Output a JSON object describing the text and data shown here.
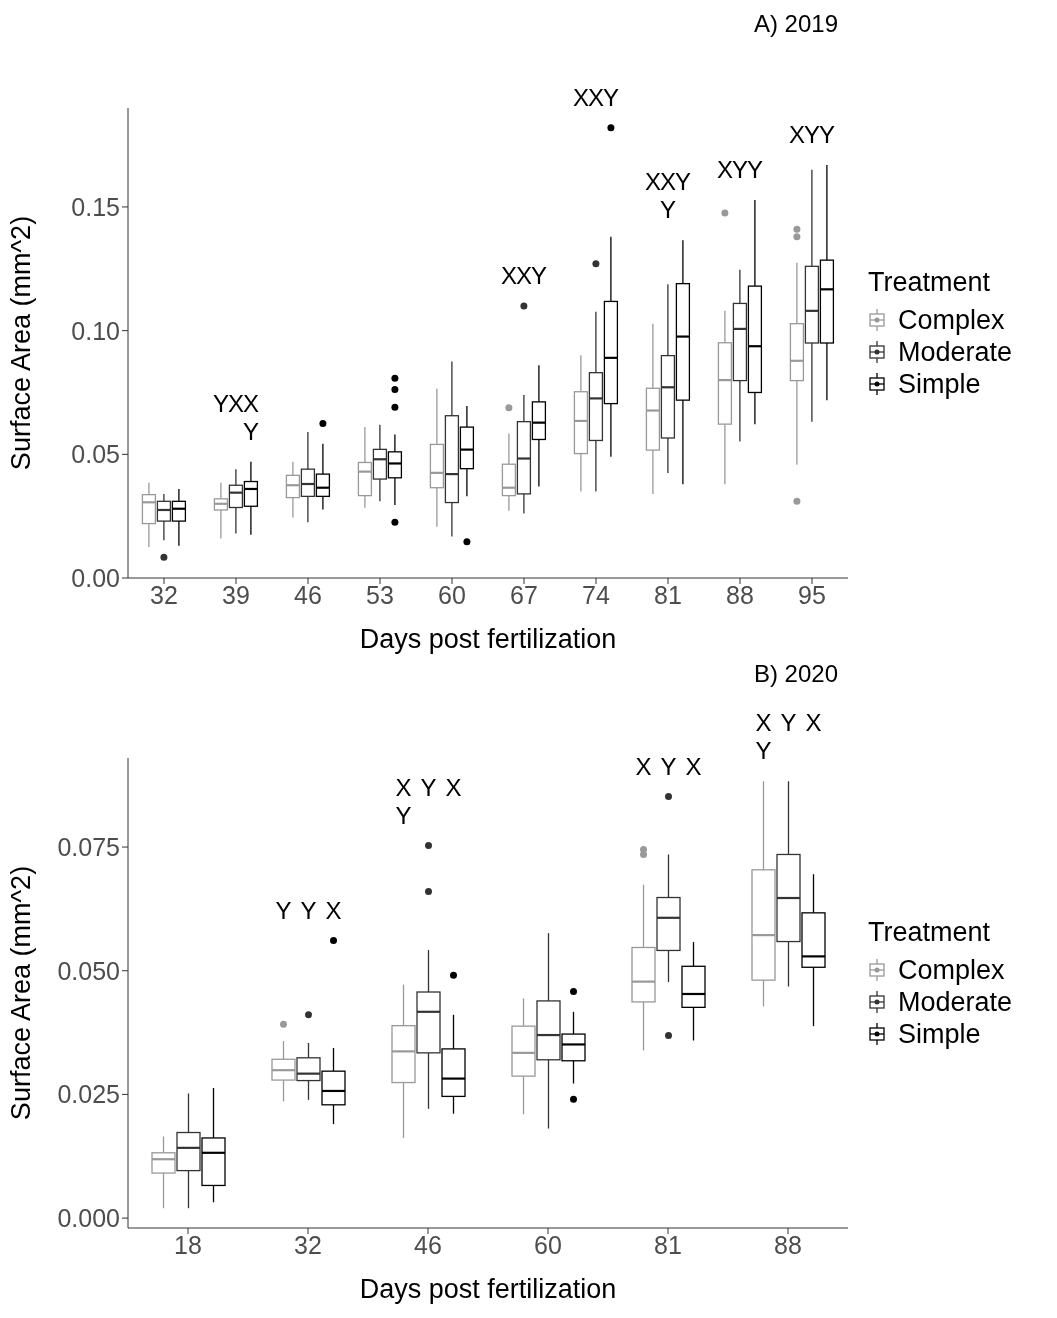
{
  "chart_data": [
    {
      "type": "box",
      "title": "A) 2019",
      "xlabel": "Days post fertilization",
      "ylabel": "Surface Area (mm^2)",
      "legend": "right",
      "legend_title": "Treatment",
      "categories": [
        "32",
        "39",
        "46",
        "53",
        "60",
        "67",
        "74",
        "81",
        "88",
        "95"
      ],
      "ylim": [
        0,
        0.19
      ],
      "yticks": [
        {
          "value": 0,
          "label": "0.00"
        },
        {
          "value": 0.05,
          "label": "0.05"
        },
        {
          "value": 0.1,
          "label": "0.10"
        },
        {
          "value": 0.15,
          "label": "0.15"
        }
      ],
      "series": [
        {
          "name": "Complex",
          "color": "#999999",
          "value_labels": [
            null,
            "Y",
            null,
            null,
            null,
            "X",
            "X",
            "X",
            "X",
            "X"
          ],
          "boxes": [
            {
              "low": 0.0125,
              "q1": 0.022,
              "median": 0.0306,
              "q3": 0.0337,
              "high": 0.0385
            },
            {
              "low": 0.016,
              "q1": 0.0275,
              "median": 0.03,
              "q3": 0.032,
              "high": 0.0385
            },
            {
              "low": 0.0245,
              "q1": 0.0325,
              "median": 0.0375,
              "q3": 0.0415,
              "high": 0.047
            },
            {
              "low": 0.0284,
              "q1": 0.0333,
              "median": 0.043,
              "q3": 0.0467,
              "high": 0.061
            },
            {
              "low": 0.0207,
              "q1": 0.0365,
              "median": 0.0425,
              "q3": 0.054,
              "high": 0.0765
            },
            {
              "low": 0.0272,
              "q1": 0.0333,
              "median": 0.0365,
              "q3": 0.046,
              "high": 0.0584,
              "outliers": [
                0.0688
              ]
            },
            {
              "low": 0.035,
              "q1": 0.0503,
              "median": 0.0635,
              "q3": 0.0753,
              "high": 0.09
            },
            {
              "low": 0.034,
              "q1": 0.0517,
              "median": 0.0677,
              "q3": 0.0767,
              "high": 0.1028
            },
            {
              "low": 0.0379,
              "q1": 0.0622,
              "median": 0.08,
              "q3": 0.0951,
              "high": 0.108,
              "outliers": [
                0.1476
              ]
            },
            {
              "low": 0.0458,
              "q1": 0.0798,
              "median": 0.0878,
              "q3": 0.1028,
              "high": 0.1274,
              "outliers": [
                0.141,
                0.138,
                0.031
              ]
            }
          ]
        },
        {
          "name": "Moderate",
          "color": "#333333",
          "value_labels": [
            null,
            "X",
            null,
            null,
            null,
            "X",
            "X",
            "X\nY",
            "Y",
            "Y"
          ],
          "boxes": [
            {
              "low": 0.0153,
              "q1": 0.023,
              "median": 0.0275,
              "q3": 0.031,
              "high": 0.034,
              "outliers": [
                0.0084
              ]
            },
            {
              "low": 0.018,
              "q1": 0.0285,
              "median": 0.0345,
              "q3": 0.0375,
              "high": 0.044
            },
            {
              "low": 0.0225,
              "q1": 0.033,
              "median": 0.038,
              "q3": 0.044,
              "high": 0.059
            },
            {
              "low": 0.031,
              "q1": 0.04,
              "median": 0.048,
              "q3": 0.052,
              "high": 0.062
            },
            {
              "low": 0.0168,
              "q1": 0.0305,
              "median": 0.042,
              "q3": 0.0656,
              "high": 0.0875
            },
            {
              "low": 0.0261,
              "q1": 0.034,
              "median": 0.0483,
              "q3": 0.0632,
              "high": 0.074,
              "outliers": [
                0.11
              ]
            },
            {
              "low": 0.035,
              "q1": 0.0556,
              "median": 0.0726,
              "q3": 0.083,
              "high": 0.1076,
              "outliers": [
                0.127
              ]
            },
            {
              "low": 0.0424,
              "q1": 0.0566,
              "median": 0.0771,
              "q3": 0.0899,
              "high": 0.1188
            },
            {
              "low": 0.0552,
              "q1": 0.0798,
              "median": 0.1007,
              "q3": 0.111,
              "high": 0.1246
            },
            {
              "low": 0.0632,
              "q1": 0.095,
              "median": 0.108,
              "q3": 0.126,
              "high": 0.165
            }
          ]
        },
        {
          "name": "Simple",
          "color": "#000000",
          "value_labels": [
            null,
            "X\nY",
            null,
            null,
            null,
            "Y",
            "Y",
            "Y",
            "Y",
            "Y"
          ],
          "boxes": [
            {
              "low": 0.013,
              "q1": 0.023,
              "median": 0.028,
              "q3": 0.031,
              "high": 0.036
            },
            {
              "low": 0.0175,
              "q1": 0.029,
              "median": 0.036,
              "q3": 0.039,
              "high": 0.047
            },
            {
              "low": 0.0277,
              "q1": 0.033,
              "median": 0.0365,
              "q3": 0.042,
              "high": 0.0543,
              "outliers": [
                0.0625
              ]
            },
            {
              "low": 0.0295,
              "q1": 0.0405,
              "median": 0.0463,
              "q3": 0.051,
              "high": 0.058,
              "outliers": [
                0.0807,
                0.0762,
                0.069,
                0.0225
              ]
            },
            {
              "low": 0.033,
              "q1": 0.0442,
              "median": 0.0519,
              "q3": 0.061,
              "high": 0.0695,
              "outliers": [
                0.0147
              ]
            },
            {
              "low": 0.037,
              "q1": 0.056,
              "median": 0.0628,
              "q3": 0.0712,
              "high": 0.086
            },
            {
              "low": 0.049,
              "q1": 0.0705,
              "median": 0.089,
              "q3": 0.1118,
              "high": 0.138,
              "outliers": [
                0.182
              ]
            },
            {
              "low": 0.0379,
              "q1": 0.0719,
              "median": 0.0976,
              "q3": 0.119,
              "high": 0.1365
            },
            {
              "low": 0.0622,
              "q1": 0.075,
              "median": 0.0937,
              "q3": 0.118,
              "high": 0.1528
            },
            {
              "low": 0.0719,
              "q1": 0.095,
              "median": 0.1167,
              "q3": 0.1285,
              "high": 0.167
            }
          ]
        }
      ]
    },
    {
      "type": "box",
      "title": "B) 2020",
      "xlabel": "Days post fertilization",
      "ylabel": "Surface Area (mm^2)",
      "legend": "right",
      "legend_title": "Treatment",
      "categories": [
        "18",
        "32",
        "46",
        "60",
        "81",
        "88"
      ],
      "ylim": [
        -0.002,
        0.093
      ],
      "yticks": [
        {
          "value": 0,
          "label": "0.000"
        },
        {
          "value": 0.025,
          "label": "0.025"
        },
        {
          "value": 0.05,
          "label": "0.050"
        },
        {
          "value": 0.075,
          "label": "0.075"
        }
      ],
      "series": [
        {
          "name": "Complex",
          "color": "#999999",
          "value_labels": [
            null,
            "Y",
            "X\nY",
            null,
            "X",
            "X\nY"
          ],
          "boxes": [
            {
              "low": 0.002,
              "q1": 0.0091,
              "median": 0.0119,
              "q3": 0.0132,
              "high": 0.0165
            },
            {
              "low": 0.0236,
              "q1": 0.0279,
              "median": 0.0299,
              "q3": 0.0321,
              "high": 0.0358,
              "outliers": [
                0.0392
              ]
            },
            {
              "low": 0.0162,
              "q1": 0.0274,
              "median": 0.0337,
              "q3": 0.0389,
              "high": 0.0472
            },
            {
              "low": 0.021,
              "q1": 0.0287,
              "median": 0.0334,
              "q3": 0.0388,
              "high": 0.0444
            },
            {
              "low": 0.0339,
              "q1": 0.0437,
              "median": 0.0478,
              "q3": 0.0547,
              "high": 0.0674,
              "outliers": [
                0.0745,
                0.0735
              ]
            },
            {
              "low": 0.0428,
              "q1": 0.0481,
              "median": 0.0572,
              "q3": 0.0704,
              "high": 0.0883
            }
          ]
        },
        {
          "name": "Moderate",
          "color": "#333333",
          "value_labels": [
            null,
            "Y",
            "Y",
            null,
            "Y",
            "Y"
          ],
          "boxes": [
            {
              "low": 0.002,
              "q1": 0.0096,
              "median": 0.0142,
              "q3": 0.0173,
              "high": 0.0252
            },
            {
              "low": 0.0239,
              "q1": 0.0278,
              "median": 0.0292,
              "q3": 0.0324,
              "high": 0.0354,
              "outliers": [
                0.0411
              ]
            },
            {
              "low": 0.0221,
              "q1": 0.0334,
              "median": 0.0417,
              "q3": 0.0457,
              "high": 0.0542,
              "outliers": [
                0.0753,
                0.066
              ]
            },
            {
              "low": 0.0181,
              "q1": 0.032,
              "median": 0.037,
              "q3": 0.0439,
              "high": 0.0576
            },
            {
              "low": 0.0477,
              "q1": 0.0541,
              "median": 0.0607,
              "q3": 0.0648,
              "high": 0.0735,
              "outliers": [
                0.0852,
                0.0369
              ]
            },
            {
              "low": 0.0468,
              "q1": 0.0559,
              "median": 0.0647,
              "q3": 0.0735,
              "high": 0.0883
            }
          ]
        },
        {
          "name": "Simple",
          "color": "#000000",
          "value_labels": [
            null,
            "X",
            "X",
            null,
            "X",
            "X"
          ],
          "boxes": [
            {
              "low": 0.0032,
              "q1": 0.0066,
              "median": 0.0132,
              "q3": 0.0162,
              "high": 0.0263
            },
            {
              "low": 0.019,
              "q1": 0.0229,
              "median": 0.0257,
              "q3": 0.0297,
              "high": 0.0344,
              "outliers": [
                0.0561
              ]
            },
            {
              "low": 0.0211,
              "q1": 0.0246,
              "median": 0.0282,
              "q3": 0.0342,
              "high": 0.0411,
              "outliers": [
                0.0491
              ]
            },
            {
              "low": 0.0272,
              "q1": 0.0318,
              "median": 0.0351,
              "q3": 0.0372,
              "high": 0.0417,
              "outliers": [
                0.0458,
                0.024
              ]
            },
            {
              "low": 0.0359,
              "q1": 0.0426,
              "median": 0.0453,
              "q3": 0.0509,
              "high": 0.0558
            },
            {
              "low": 0.0388,
              "q1": 0.0507,
              "median": 0.0529,
              "q3": 0.0617,
              "high": 0.0695
            }
          ]
        }
      ]
    }
  ]
}
